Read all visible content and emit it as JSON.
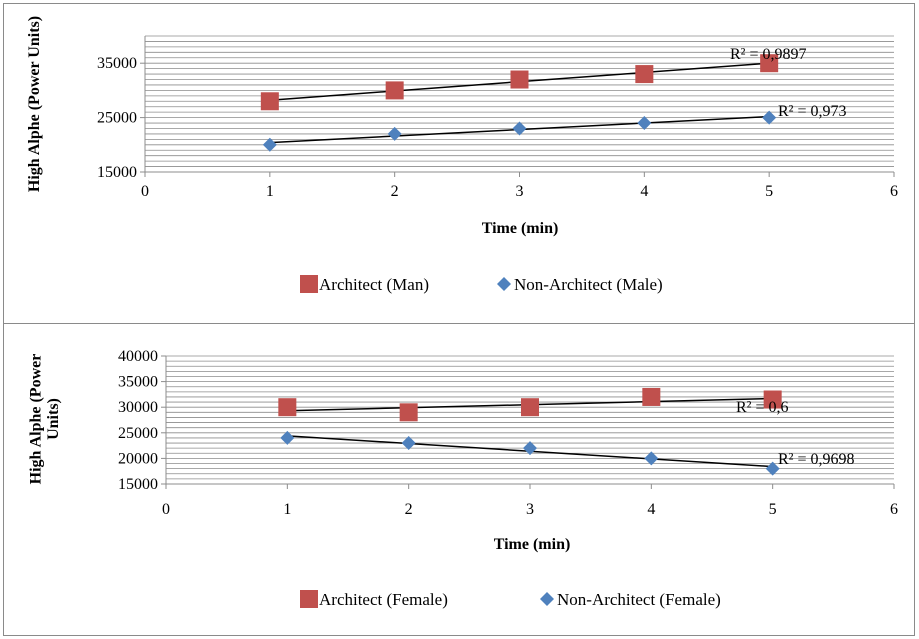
{
  "chart_data": [
    {
      "type": "scatter",
      "xlabel": "Time (min)",
      "ylabel": "High Alphe (Power Units)",
      "xlim": [
        0,
        6
      ],
      "ylim": [
        15000,
        40000
      ],
      "x_ticks": [
        "0",
        "1",
        "2",
        "3",
        "4",
        "5",
        "6"
      ],
      "y_ticks": [
        "15000",
        "25000",
        "35000"
      ],
      "grid": true,
      "legend_position": "bottom",
      "series": [
        {
          "name": "Architect (Man)",
          "marker": "square",
          "color": "#c0504d",
          "x": [
            1,
            2,
            3,
            4,
            5
          ],
          "y": [
            28000,
            30000,
            32000,
            33000,
            35000
          ],
          "trendline": "linear",
          "r2_label": "R² = 0,9897"
        },
        {
          "name": "Non-Architect (Male)",
          "marker": "diamond",
          "color": "#4f81bd",
          "x": [
            1,
            2,
            3,
            4,
            5
          ],
          "y": [
            20000,
            22000,
            23000,
            24000,
            25000
          ],
          "trendline": "linear",
          "r2_label": "R² = 0,973"
        }
      ]
    },
    {
      "type": "scatter",
      "xlabel": "Time (min)",
      "ylabel": "High Alphe (Power Units)",
      "xlim": [
        0,
        6
      ],
      "ylim": [
        15000,
        40000
      ],
      "x_ticks": [
        "0",
        "1",
        "2",
        "3",
        "4",
        "5",
        "6"
      ],
      "y_ticks": [
        "15000",
        "20000",
        "25000",
        "30000",
        "35000",
        "40000"
      ],
      "grid": true,
      "legend_position": "bottom",
      "series": [
        {
          "name": "Architect (Female)",
          "marker": "square",
          "color": "#c0504d",
          "x": [
            1,
            2,
            3,
            4,
            5
          ],
          "y": [
            30000,
            29000,
            30000,
            32000,
            31500
          ],
          "trendline": "linear",
          "r2_label": "R² = 0,6"
        },
        {
          "name": "Non-Architect (Female)",
          "marker": "diamond",
          "color": "#4f81bd",
          "x": [
            1,
            2,
            3,
            4,
            5
          ],
          "y": [
            24000,
            23000,
            22000,
            20000,
            18000
          ],
          "trendline": "linear",
          "r2_label": "R² = 0,9698"
        }
      ]
    }
  ]
}
